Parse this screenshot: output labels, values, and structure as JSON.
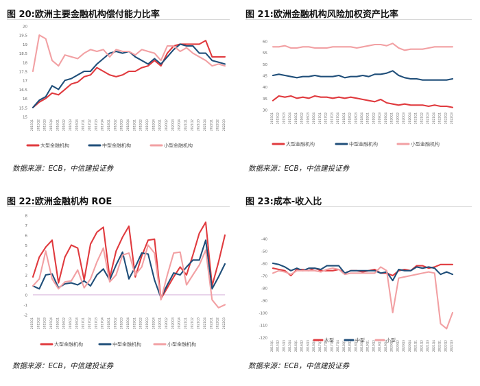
{
  "panels": [
    {
      "title": "图 20:欧洲主要金融机构偿付能力比率",
      "source": "数据来源：ECB，中信建投证券"
    },
    {
      "title": "图 21:欧洲金融机构风险加权资产比率",
      "source": "数据来源：ECB，中信建投证券"
    },
    {
      "title": "图 22:欧洲金融机构 ROE",
      "source": "数据来源：ECB，中信建投证券"
    },
    {
      "title": "图 23:成本-收入比",
      "source": "数据来源：ECB，中信建投证券"
    }
  ],
  "colors": {
    "large": "#e03a3e",
    "mid": "#1f4e79",
    "small": "#f2a0a3",
    "zero": "#d0a8d6"
  },
  "chart_data": [
    {
      "type": "line",
      "title": "图 20:欧洲主要金融机构偿付能力比率",
      "xlabel": "",
      "ylabel": "",
      "ylim": [
        15,
        20
      ],
      "yticks": [
        "15",
        "15.5",
        "16",
        "16.5",
        "17",
        "17.5",
        "18",
        "18.5",
        "19",
        "19.5",
        "20"
      ],
      "x": [
        "2015Q1",
        "2015Q2",
        "2015Q3",
        "2015Q4",
        "2016Q1",
        "2016Q2",
        "2016Q3",
        "2016Q4",
        "2017Q1",
        "2017Q2",
        "2017Q3",
        "2017Q4",
        "2018Q1",
        "2018Q2",
        "2018Q3",
        "2018Q4",
        "2019Q1",
        "2019Q2",
        "2019Q3",
        "2019Q4",
        "2020Q1",
        "2020Q2",
        "2020Q3",
        "2020Q4",
        "2021Q1",
        "2021Q2",
        "2021Q3",
        "2021Q4",
        "2022Q1",
        "2022Q2",
        "2022Q3"
      ],
      "series": [
        {
          "name": "大型金融机构",
          "values": [
            15.5,
            15.8,
            16.0,
            16.3,
            16.2,
            16.5,
            16.8,
            16.9,
            17.2,
            17.3,
            17.7,
            17.5,
            17.3,
            17.2,
            17.3,
            17.5,
            17.5,
            17.7,
            17.8,
            18.1,
            17.8,
            18.5,
            18.9,
            19.0,
            19.0,
            19.0,
            19.0,
            19.2,
            18.3,
            18.3,
            18.3
          ]
        },
        {
          "name": "中型金融机构",
          "values": [
            15.5,
            15.9,
            16.1,
            16.7,
            16.5,
            17.0,
            17.1,
            17.3,
            17.5,
            17.5,
            17.9,
            18.2,
            18.5,
            18.6,
            18.5,
            18.6,
            18.3,
            18.1,
            17.9,
            18.2,
            17.9,
            18.3,
            18.7,
            19.0,
            18.9,
            18.9,
            18.5,
            18.5,
            18.1,
            18.0,
            17.9
          ]
        },
        {
          "name": "小型金融机构",
          "values": [
            17.5,
            19.5,
            19.3,
            18.1,
            17.8,
            18.4,
            18.3,
            18.2,
            18.5,
            18.7,
            18.6,
            18.7,
            18.3,
            18.7,
            18.6,
            18.6,
            18.4,
            18.7,
            18.6,
            18.5,
            18.1,
            18.9,
            18.9,
            18.6,
            18.8,
            18.5,
            18.3,
            18.1,
            17.8,
            17.9,
            17.8
          ]
        }
      ]
    },
    {
      "type": "line",
      "title": "图 21:欧洲金融机构风险加权资产比率",
      "xlabel": "",
      "ylabel": "",
      "ylim": [
        30,
        60
      ],
      "yticks": [
        "30",
        "35",
        "40",
        "45",
        "50",
        "55",
        "60"
      ],
      "x": [
        "2015Q1",
        "2015Q2",
        "2015Q3",
        "2015Q4",
        "2016Q1",
        "2016Q2",
        "2016Q3",
        "2016Q4",
        "2017Q1",
        "2017Q2",
        "2017Q3",
        "2017Q4",
        "2018Q1",
        "2018Q2",
        "2018Q3",
        "2018Q4",
        "2019Q1",
        "2019Q2",
        "2019Q3",
        "2019Q4",
        "2020Q1",
        "2020Q2",
        "2020Q3",
        "2020Q4",
        "2021Q1",
        "2021Q2",
        "2021Q3",
        "2021Q4",
        "2022Q1",
        "2022Q2",
        "2022Q3"
      ],
      "series": [
        {
          "name": "大型金融机构",
          "values": [
            34,
            36,
            35.5,
            36,
            35,
            35.5,
            35,
            36,
            35.5,
            35.5,
            35,
            35.5,
            35,
            35.5,
            35,
            34.5,
            34,
            33.5,
            34.5,
            33,
            32.5,
            32,
            32.5,
            32,
            32,
            32,
            31.5,
            32,
            31.5,
            31.5,
            31
          ]
        },
        {
          "name": "中型金融机构",
          "values": [
            45,
            45.5,
            45,
            44.5,
            44,
            44.5,
            44.5,
            45,
            44.5,
            44.5,
            44.5,
            45,
            44,
            44.5,
            44.5,
            45,
            44.5,
            45.5,
            45.5,
            46,
            47,
            45,
            44,
            43.5,
            43.5,
            43,
            43,
            43,
            43,
            43,
            43.5
          ]
        },
        {
          "name": "小型金融机构",
          "values": [
            57.5,
            57.5,
            58,
            57,
            57,
            57.5,
            57.5,
            57,
            57,
            57,
            57.5,
            57.5,
            57.5,
            57.5,
            57,
            57.5,
            58,
            58.5,
            58.5,
            58,
            59,
            57,
            56,
            56.5,
            56.5,
            56.5,
            57,
            57.5,
            57.5,
            57.5,
            57.5
          ]
        }
      ]
    },
    {
      "type": "line",
      "title": "图 22:欧洲金融机构 ROE",
      "xlabel": "",
      "ylabel": "",
      "ylim": [
        -2,
        8
      ],
      "yticks": [
        "-2",
        "-1",
        "0",
        "1",
        "2",
        "3",
        "4",
        "5",
        "6",
        "7",
        "8"
      ],
      "x": [
        "2015Q1",
        "2015Q2",
        "2015Q3",
        "2015Q4",
        "2016Q1",
        "2016Q2",
        "2016Q3",
        "2016Q4",
        "2017Q1",
        "2017Q2",
        "2017Q3",
        "2017Q4",
        "2018Q1",
        "2018Q2",
        "2018Q3",
        "2018Q4",
        "2019Q1",
        "2019Q2",
        "2019Q3",
        "2019Q4",
        "2020Q1",
        "2020Q2",
        "2020Q3",
        "2020Q4",
        "2021Q1",
        "2021Q2",
        "2021Q3",
        "2021Q4",
        "2022Q1",
        "2022Q2",
        "2022Q3"
      ],
      "series": [
        {
          "name": "大型金融机构",
          "values": [
            1.8,
            3.8,
            4.8,
            5.5,
            1.2,
            3.8,
            5.0,
            4.7,
            1.5,
            5.1,
            6.3,
            6.8,
            1.7,
            4.4,
            5.8,
            6.9,
            1.8,
            3.9,
            5.5,
            5.6,
            -0.4,
            0.7,
            1.8,
            2.8,
            2.0,
            4.0,
            6.2,
            7.3,
            0.9,
            3.3,
            6.0
          ]
        },
        {
          "name": "中型金融机构",
          "values": [
            0.9,
            0.6,
            2.0,
            2.1,
            0.7,
            1.1,
            1.2,
            1.0,
            1.4,
            0.9,
            2.0,
            2.6,
            1.5,
            3.0,
            4.3,
            1.6,
            2.8,
            4.2,
            4.1,
            1.5,
            -0.3,
            1.0,
            2.2,
            2.0,
            2.8,
            3.5,
            3.5,
            5.5,
            0.6,
            1.8,
            3.1
          ]
        },
        {
          "name": "小型金融机构",
          "values": [
            0.9,
            1.6,
            4.4,
            1.6,
            0.6,
            1.3,
            1.4,
            2.5,
            0.7,
            1.6,
            3.3,
            4.7,
            1.3,
            2.0,
            4.0,
            4.2,
            2.0,
            2.8,
            5.0,
            4.2,
            -0.5,
            2.0,
            4.2,
            4.3,
            1.0,
            2.0,
            3.0,
            4.5,
            -0.5,
            -1.3,
            -1.0
          ]
        }
      ]
    },
    {
      "type": "line",
      "title": "图 23:成本-收入比",
      "xlabel": "",
      "ylabel": "",
      "ylim": [
        -120,
        -40
      ],
      "yticks": [
        "-120",
        "-110",
        "-100",
        "-90",
        "-80",
        "-70",
        "-60",
        "-50",
        "-40"
      ],
      "x": [
        "2015Q1",
        "2015Q2",
        "2015Q3",
        "2015Q4",
        "2016Q1",
        "2016Q2",
        "2016Q3",
        "2016Q4",
        "2017Q1",
        "2017Q2",
        "2017Q3",
        "2017Q4",
        "2018Q1",
        "2018Q2",
        "2018Q3",
        "2018Q4",
        "2019Q1",
        "2019Q2",
        "2019Q3",
        "2019Q4",
        "2020Q1",
        "2020Q2",
        "2020Q3",
        "2020Q4",
        "2021Q1",
        "2021Q2",
        "2021Q3",
        "2021Q4",
        "2022Q1",
        "2022Q2",
        "2022Q3"
      ],
      "series": [
        {
          "name": "大型",
          "values": [
            -64,
            -65,
            -66,
            -70,
            -65,
            -65,
            -66,
            -64,
            -66,
            -66,
            -66,
            -65,
            -68,
            -66,
            -66,
            -67,
            -66,
            -65,
            -68,
            -68,
            -70,
            -66,
            -65,
            -66,
            -62,
            -62,
            -64,
            -63,
            -61,
            -61,
            -61
          ]
        },
        {
          "name": "中型",
          "values": [
            -60,
            -61,
            -63,
            -66,
            -64,
            -66,
            -64,
            -64,
            -65,
            -62,
            -62,
            -62,
            -68,
            -66,
            -66,
            -66,
            -66,
            -66,
            -68,
            -67,
            -74,
            -65,
            -66,
            -66,
            -63,
            -64,
            -63,
            -64,
            -69,
            -67,
            -69
          ]
        },
        {
          "name": "小型",
          "values": [
            -68,
            -66,
            -67,
            -69,
            -66,
            -66,
            -66,
            -66,
            -67,
            -65,
            -64,
            -65,
            -69,
            -68,
            -68,
            -68,
            -68,
            -68,
            -63,
            -66,
            -100,
            -72,
            -71,
            -70,
            -69,
            -68,
            -67,
            -68,
            -109,
            -113,
            -100
          ]
        }
      ]
    }
  ]
}
